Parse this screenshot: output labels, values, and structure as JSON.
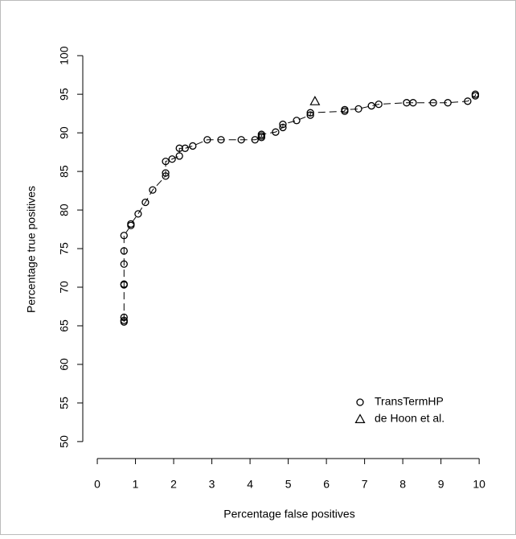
{
  "chart_data": {
    "type": "scatter",
    "x_label": "Percentage false positives",
    "y_label": "Percentage true positives",
    "xlim": [
      -0.38,
      10.46
    ],
    "ylim": [
      47.8,
      102.0
    ],
    "xticks": [
      0,
      1,
      2,
      3,
      4,
      5,
      6,
      7,
      8,
      9,
      10
    ],
    "yticks": [
      50,
      55,
      60,
      65,
      70,
      75,
      80,
      85,
      90,
      95,
      100
    ],
    "legend": "bottom-right",
    "series": [
      {
        "name": "TransTermHP",
        "marker": "circle",
        "connected": true,
        "color": "#000000",
        "x": [
          0.7,
          0.7,
          0.7,
          0.7,
          0.7,
          0.7,
          0.7,
          0.7,
          0.88,
          0.88,
          1.07,
          1.26,
          1.45,
          1.79,
          1.79,
          1.79,
          1.96,
          2.15,
          2.15,
          2.3,
          2.5,
          2.88,
          3.24,
          3.77,
          4.13,
          4.3,
          4.3,
          4.3,
          4.67,
          4.86,
          4.86,
          5.22,
          5.58,
          5.58,
          6.48,
          6.48,
          6.84,
          7.18,
          7.37,
          8.1,
          8.27,
          8.8,
          9.18,
          9.7,
          9.9,
          9.9
        ],
        "values": [
          65.5,
          65.7,
          66.1,
          70.3,
          70.4,
          73.0,
          74.7,
          76.7,
          78.0,
          78.2,
          79.5,
          81.0,
          82.6,
          84.4,
          84.8,
          86.3,
          86.6,
          87.0,
          88.0,
          88.0,
          88.3,
          89.1,
          89.1,
          89.1,
          89.1,
          89.4,
          89.6,
          89.8,
          90.1,
          90.7,
          91.1,
          91.6,
          92.3,
          92.6,
          92.8,
          93.0,
          93.1,
          93.5,
          93.7,
          93.9,
          93.9,
          93.9,
          93.9,
          94.1,
          94.8,
          95.0
        ]
      },
      {
        "name": "de Hoon et al.",
        "marker": "triangle",
        "connected": false,
        "color": "#000000",
        "x": [
          5.7
        ],
        "values": [
          94.1
        ]
      }
    ]
  }
}
